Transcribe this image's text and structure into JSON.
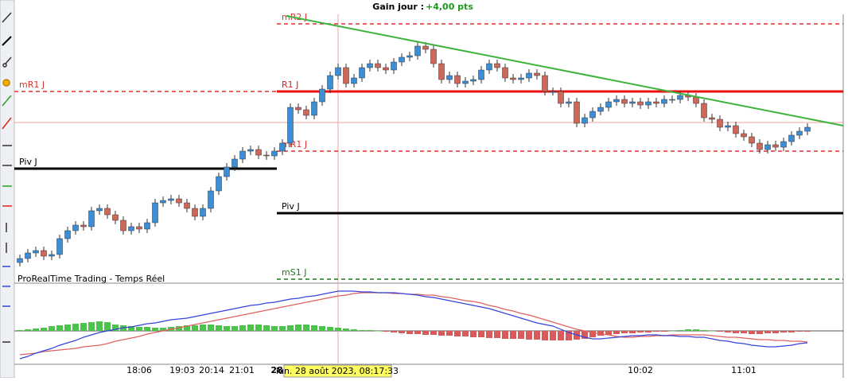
{
  "header": {
    "label": "Gain jour : ",
    "value": "+4,00 pts"
  },
  "status": "ProRealTime Trading - Temps Réel",
  "levels": [
    {
      "label": "mR2 J",
      "value": 370,
      "color": "#e03030",
      "style": "dashed",
      "side": "right"
    },
    {
      "label": "mR1 J",
      "value": 285,
      "color": "#e03030",
      "style": "dashed",
      "side": "left"
    },
    {
      "label": "R1 J",
      "value": 285,
      "color": "#ee1111",
      "style": "solid",
      "side": "right"
    },
    {
      "label": "mR1 J",
      "value": 210,
      "color": "#e03030",
      "style": "dashed",
      "side": "right"
    },
    {
      "label": "Piv J",
      "value": 188,
      "color": "#000000",
      "style": "solid",
      "side": "left"
    },
    {
      "label": "Piv J",
      "value": 132,
      "color": "#000000",
      "style": "solid",
      "side": "right"
    },
    {
      "label": "mS1 J",
      "value": 49,
      "color": "#1a7a1a",
      "style": "dashed",
      "side": "right"
    }
  ],
  "candles": {
    "up_color": "#3a8fd8",
    "down_color": "#d0685a",
    "open": 70,
    "closes": [
      75,
      82,
      85,
      78,
      80,
      100,
      110,
      117,
      115,
      135,
      138,
      130,
      123,
      110,
      115,
      112,
      120,
      145,
      148,
      150,
      145,
      138,
      128,
      138,
      160,
      178,
      190,
      200,
      210,
      212,
      205,
      204,
      210,
      220,
      265,
      262,
      255,
      272,
      288,
      305,
      315,
      295,
      302,
      315,
      320,
      315,
      312,
      322,
      328,
      330,
      342,
      338,
      320,
      300,
      305,
      295,
      298,
      300,
      312,
      320,
      315,
      302,
      300,
      302,
      308,
      305,
      285,
      285,
      270,
      272,
      245,
      252,
      260,
      265,
      272,
      275,
      270,
      272,
      268,
      272,
      270,
      275,
      275,
      280,
      278,
      270,
      252,
      250,
      240,
      242,
      232,
      228,
      220,
      212,
      218,
      215,
      222,
      230,
      235,
      240
    ]
  },
  "macd": {
    "macd_color": "#3344dd",
    "signal_color": "#e06060",
    "pos_color": "#4cc44c",
    "neg_color": "#d85a5a",
    "macd": [
      -35,
      -32,
      -28,
      -25,
      -22,
      -18,
      -15,
      -12,
      -8,
      -5,
      -2,
      0,
      2,
      4,
      5,
      7,
      9,
      10,
      12,
      14,
      15,
      16,
      18,
      20,
      22,
      24,
      26,
      28,
      30,
      32,
      33,
      35,
      36,
      38,
      40,
      41,
      43,
      44,
      46,
      48,
      50,
      50,
      50,
      49,
      49,
      48,
      48,
      48,
      47,
      46,
      45,
      43,
      42,
      40,
      38,
      36,
      34,
      32,
      30,
      28,
      25,
      22,
      19,
      16,
      13,
      10,
      8,
      6,
      2,
      -2,
      -5,
      -8,
      -10,
      -10,
      -9,
      -8,
      -7,
      -6,
      -6,
      -5,
      -5,
      -6,
      -6,
      -7,
      -7,
      -8,
      -8,
      -10,
      -12,
      -13,
      -15,
      -16,
      -18,
      -19,
      -20,
      -20,
      -19,
      -18,
      -16,
      -15
    ],
    "signal": [
      -30,
      -29,
      -28,
      -26,
      -25,
      -24,
      -23,
      -22,
      -20,
      -19,
      -18,
      -16,
      -13,
      -11,
      -9,
      -7,
      -4,
      -2,
      0,
      2,
      4,
      6,
      8,
      10,
      12,
      14,
      16,
      18,
      20,
      22,
      24,
      26,
      28,
      30,
      32,
      34,
      36,
      38,
      40,
      42,
      44,
      45,
      47,
      48,
      48,
      48,
      48,
      47,
      47,
      46,
      46,
      45,
      45,
      43,
      42,
      40,
      38,
      37,
      35,
      32,
      30,
      27,
      25,
      22,
      20,
      17,
      14,
      11,
      8,
      5,
      2,
      0,
      -2,
      -4,
      -5,
      -7,
      -8,
      -8,
      -7,
      -7,
      -6,
      -6,
      -5,
      -5,
      -5,
      -5,
      -5,
      -6,
      -7,
      -8,
      -8,
      -9,
      -10,
      -11,
      -11,
      -12,
      -12,
      -13,
      -13,
      -14
    ],
    "hist": [
      1,
      2,
      3,
      4,
      6,
      7,
      8,
      9,
      10,
      11,
      12,
      11,
      8,
      7,
      6,
      5,
      5,
      4,
      4,
      5,
      6,
      7,
      7,
      8,
      8,
      7,
      6,
      6,
      7,
      8,
      8,
      7,
      6,
      6,
      7,
      8,
      8,
      7,
      6,
      5,
      4,
      3,
      2,
      1,
      1,
      0,
      -1,
      -2,
      -3,
      -4,
      -4,
      -5,
      -5,
      -6,
      -6,
      -7,
      -7,
      -8,
      -8,
      -9,
      -9,
      -10,
      -10,
      -10,
      -11,
      -11,
      -12,
      -12,
      -12,
      -12,
      -11,
      -10,
      -8,
      -6,
      -5,
      -4,
      -3,
      -3,
      -2,
      -2,
      -1,
      -1,
      0,
      1,
      2,
      2,
      1,
      0,
      -1,
      -2,
      -3,
      -3,
      -4,
      -4,
      -3,
      -3,
      -2,
      -2,
      -1,
      -1
    ]
  },
  "time_axis": [
    "18:06",
    "19:03",
    "20:14",
    "21:01",
    "28",
    "10:02",
    "11:01"
  ],
  "cursor_label": "lun. 28 août 2023, 08:17:33"
}
